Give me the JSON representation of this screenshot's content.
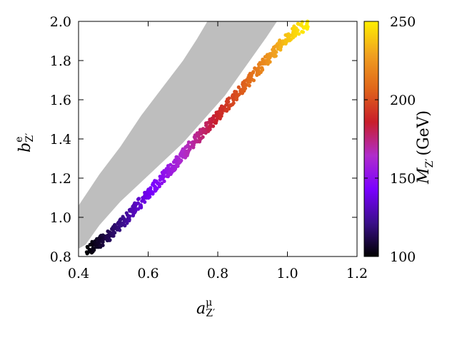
{
  "chart_data": {
    "type": "scatter",
    "title": "",
    "xlabel": "a",
    "xlabel_sup": "μ",
    "xlabel_sub": "Z′",
    "ylabel": "b",
    "ylabel_sup": "e",
    "ylabel_sub": "Z′",
    "xlim": [
      0.4,
      1.2
    ],
    "ylim": [
      0.8,
      2.0
    ],
    "xticks": [
      "0.4",
      "0.6",
      "0.8",
      "1.0",
      "1.2"
    ],
    "xtick_values": [
      0.4,
      0.6,
      0.8,
      1.0,
      1.2
    ],
    "yticks": [
      "0.8",
      "1.0",
      "1.2",
      "1.4",
      "1.6",
      "1.8",
      "2.0"
    ],
    "ytick_values": [
      0.8,
      1.0,
      1.2,
      1.4,
      1.6,
      1.8,
      2.0
    ],
    "grid": false,
    "excluded_color": "#bebebe",
    "excluded_region": {
      "polygon": [
        [
          0.4,
          0.84
        ],
        [
          0.4,
          1.06
        ],
        [
          0.46,
          1.22
        ],
        [
          0.52,
          1.36
        ],
        [
          0.58,
          1.52
        ],
        [
          0.64,
          1.66
        ],
        [
          0.7,
          1.8
        ],
        [
          0.74,
          1.91
        ],
        [
          0.77,
          2.0
        ],
        [
          0.97,
          2.0
        ],
        [
          0.94,
          1.92
        ],
        [
          0.9,
          1.82
        ],
        [
          0.86,
          1.72
        ],
        [
          0.82,
          1.62
        ],
        [
          0.78,
          1.54
        ],
        [
          0.74,
          1.46
        ],
        [
          0.7,
          1.38
        ],
        [
          0.64,
          1.28
        ],
        [
          0.58,
          1.18
        ],
        [
          0.52,
          1.08
        ],
        [
          0.46,
          0.96
        ],
        [
          0.42,
          0.86
        ]
      ]
    },
    "allowed_band": [
      {
        "x": 0.42,
        "y": 0.82,
        "mz": 100
      },
      {
        "x": 0.45,
        "y": 0.86,
        "mz": 105
      },
      {
        "x": 0.48,
        "y": 0.9,
        "mz": 112
      },
      {
        "x": 0.51,
        "y": 0.94,
        "mz": 118
      },
      {
        "x": 0.54,
        "y": 1.0,
        "mz": 125
      },
      {
        "x": 0.57,
        "y": 1.06,
        "mz": 133
      },
      {
        "x": 0.6,
        "y": 1.12,
        "mz": 140
      },
      {
        "x": 0.63,
        "y": 1.18,
        "mz": 147
      },
      {
        "x": 0.66,
        "y": 1.24,
        "mz": 155
      },
      {
        "x": 0.69,
        "y": 1.3,
        "mz": 162
      },
      {
        "x": 0.72,
        "y": 1.36,
        "mz": 168
      },
      {
        "x": 0.75,
        "y": 1.42,
        "mz": 175
      },
      {
        "x": 0.78,
        "y": 1.48,
        "mz": 182
      },
      {
        "x": 0.81,
        "y": 1.54,
        "mz": 190
      },
      {
        "x": 0.84,
        "y": 1.6,
        "mz": 197
      },
      {
        "x": 0.87,
        "y": 1.66,
        "mz": 204
      },
      {
        "x": 0.9,
        "y": 1.72,
        "mz": 212
      },
      {
        "x": 0.93,
        "y": 1.78,
        "mz": 220
      },
      {
        "x": 0.96,
        "y": 1.84,
        "mz": 228
      },
      {
        "x": 0.99,
        "y": 1.9,
        "mz": 236
      },
      {
        "x": 1.02,
        "y": 1.95,
        "mz": 243
      },
      {
        "x": 1.06,
        "y": 1.99,
        "mz": 250
      }
    ],
    "band_width": 0.03,
    "colorbar": {
      "label": "M",
      "label_sub": "Z′",
      "label_suffix": "(GeV)",
      "range": [
        100,
        250
      ],
      "ticks": [
        "100",
        "150",
        "200",
        "250"
      ],
      "tick_values": [
        100,
        150,
        200,
        250
      ],
      "palette": [
        "#000000",
        "#3a0f8a",
        "#7a00ff",
        "#b02ccc",
        "#c81e2a",
        "#e0661a",
        "#f0a020",
        "#ffef00"
      ]
    }
  }
}
